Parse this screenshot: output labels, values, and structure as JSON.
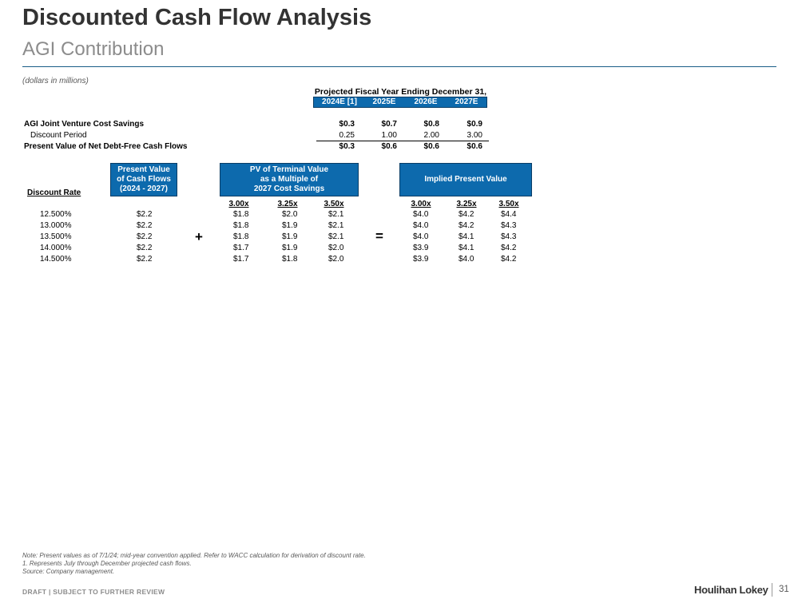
{
  "header": {
    "title": "Discounted Cash Flow Analysis",
    "subtitle": "AGI Contribution",
    "units_note": "(dollars in millions)"
  },
  "projections": {
    "header": "Projected Fiscal Year Ending December 31,",
    "years": [
      "2024E [1]",
      "2025E",
      "2026E",
      "2027E"
    ],
    "rows": [
      {
        "label": "AGI Joint Venture Cost Savings",
        "values": [
          "$0.3",
          "$0.7",
          "$0.8",
          "$0.9"
        ]
      },
      {
        "label": "Discount Period",
        "values": [
          "0.25",
          "1.00",
          "2.00",
          "3.00"
        ]
      },
      {
        "label": "Present Value of Net Debt-Free Cash Flows",
        "values": [
          "$0.3",
          "$0.6",
          "$0.6",
          "$0.6"
        ]
      }
    ]
  },
  "sensitivity": {
    "discount_rate_header": "Discount Rate",
    "pv_cf_header": [
      "Present Value",
      "of Cash Flows",
      "(2024 - 2027)"
    ],
    "pv_tv_header": [
      "PV of Terminal Value",
      "as a Multiple of",
      "2027 Cost Savings"
    ],
    "implied_header": "Implied Present Value",
    "multiples": [
      "3.00x",
      "3.25x",
      "3.50x"
    ],
    "plus_symbol": "+",
    "equals_symbol": "=",
    "rows": [
      {
        "rate": "12.500%",
        "pv_cf": "$2.2",
        "tv": [
          "$1.8",
          "$2.0",
          "$2.1"
        ],
        "implied": [
          "$4.0",
          "$4.2",
          "$4.4"
        ]
      },
      {
        "rate": "13.000%",
        "pv_cf": "$2.2",
        "tv": [
          "$1.8",
          "$1.9",
          "$2.1"
        ],
        "implied": [
          "$4.0",
          "$4.2",
          "$4.3"
        ]
      },
      {
        "rate": "13.500%",
        "pv_cf": "$2.2",
        "tv": [
          "$1.8",
          "$1.9",
          "$2.1"
        ],
        "implied": [
          "$4.0",
          "$4.1",
          "$4.3"
        ]
      },
      {
        "rate": "14.000%",
        "pv_cf": "$2.2",
        "tv": [
          "$1.7",
          "$1.9",
          "$2.0"
        ],
        "implied": [
          "$3.9",
          "$4.1",
          "$4.2"
        ]
      },
      {
        "rate": "14.500%",
        "pv_cf": "$2.2",
        "tv": [
          "$1.7",
          "$1.8",
          "$2.0"
        ],
        "implied": [
          "$3.9",
          "$4.0",
          "$4.2"
        ]
      }
    ]
  },
  "notes": [
    "Note: Present values as of 7/1/24; mid-year convention applied. Refer to WACC calculation for derivation of discount rate.",
    "1. Represents July through December projected cash flows.",
    "Source: Company management."
  ],
  "footer": {
    "draft_label": "DRAFT | SUBJECT TO FURTHER REVIEW",
    "brand": "Houlihan Lokey",
    "page_number": "31"
  },
  "colors": {
    "accent_blue": "#0d6aad",
    "rule_color": "#1a5e88"
  }
}
